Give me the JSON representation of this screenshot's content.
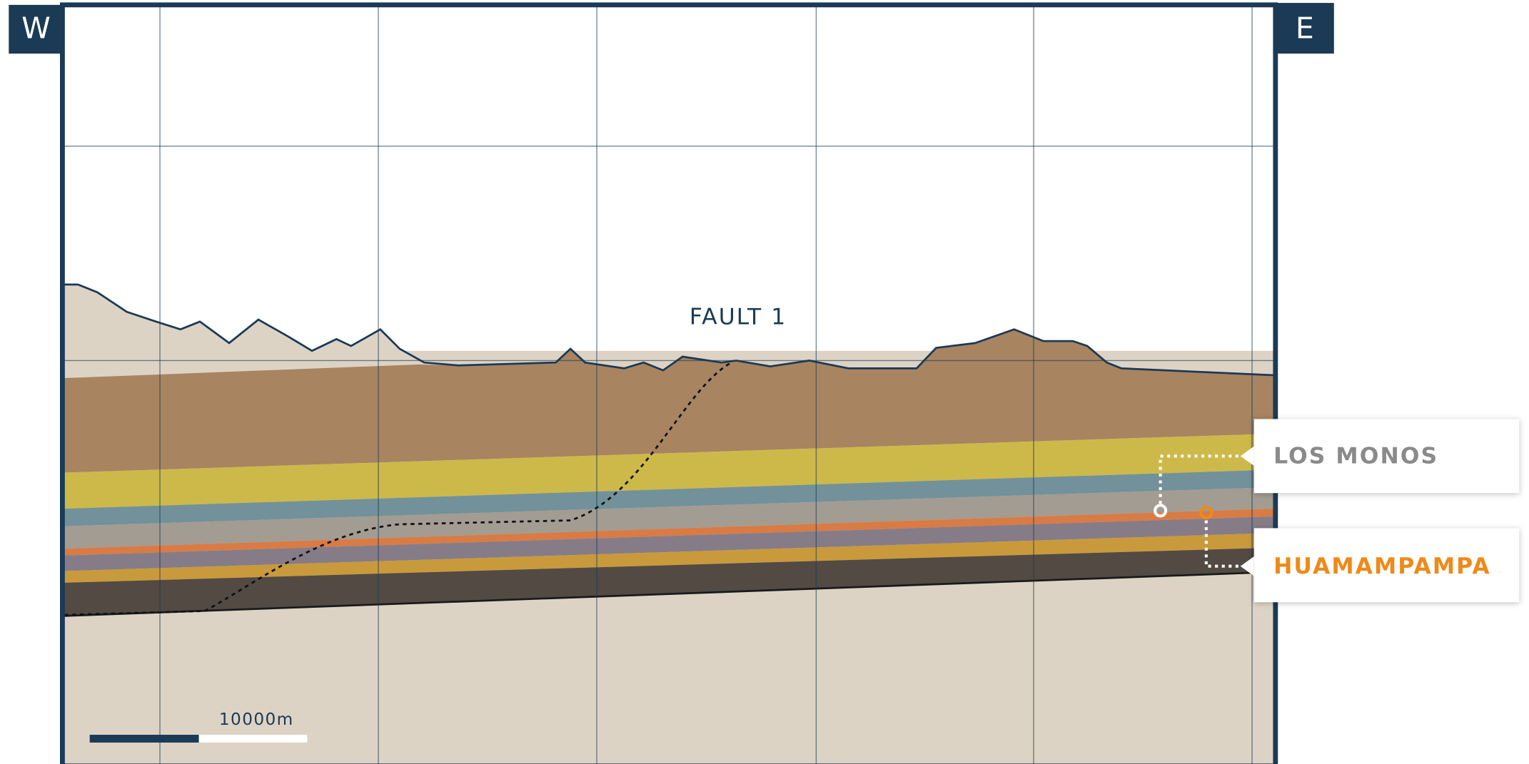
{
  "labels": {
    "west": "W",
    "east": "E",
    "fault": "FAULT 1",
    "formation_1": "LOS MONOS",
    "formation_2": "HUAMAMPAMPA",
    "scale": "10000m"
  }
}
